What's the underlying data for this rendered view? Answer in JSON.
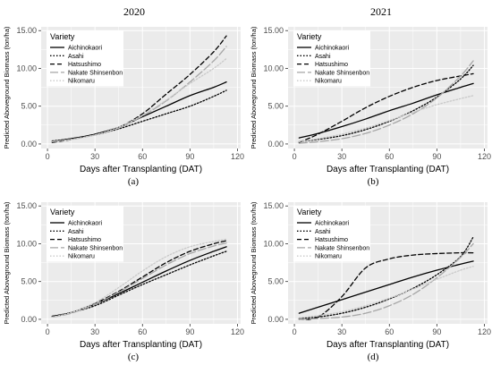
{
  "figure": {
    "year_left": "2020",
    "year_right": "2021",
    "captions": [
      "(a)",
      "(b)",
      "(c)",
      "(d)"
    ]
  },
  "colors": {
    "panel_bg": "#ebebeb",
    "grid": "#ffffff",
    "legend_bg": "#ffffff"
  },
  "chart_data": [
    {
      "type": "line",
      "year": "2020",
      "xlabel": "Days after Transplanting (DAT)",
      "ylabel": "Predicted Aboveground Biomass (ton/ha)",
      "xlim": [
        -4,
        122
      ],
      "ylim": [
        -0.6,
        15.5
      ],
      "xticks": [
        0,
        30,
        60,
        90,
        120
      ],
      "yticks": [
        0,
        5,
        10,
        15
      ],
      "ytick_labels": [
        "0.00",
        "5.00",
        "10.00",
        "15.00"
      ],
      "legend_title": "Variety",
      "legend_position": "top-left",
      "series": [
        {
          "name": "Aichinokaori",
          "color": "#000000",
          "dash": "solid",
          "x": [
            3,
            15,
            30,
            45,
            60,
            75,
            90,
            105,
            113
          ],
          "y": [
            0.3,
            0.7,
            1.3,
            2.2,
            3.6,
            5.0,
            6.4,
            7.5,
            8.2
          ]
        },
        {
          "name": "Asahi",
          "color": "#000000",
          "dash": "dotted",
          "x": [
            3,
            15,
            30,
            45,
            60,
            75,
            90,
            105,
            113
          ],
          "y": [
            0.4,
            0.7,
            1.2,
            2.0,
            3.0,
            4.0,
            5.0,
            6.3,
            7.1
          ]
        },
        {
          "name": "Hatsushimo",
          "color": "#000000",
          "dash": "dashed",
          "x": [
            3,
            15,
            30,
            45,
            60,
            75,
            90,
            105,
            113
          ],
          "y": [
            0.2,
            0.6,
            1.3,
            2.2,
            4.0,
            6.6,
            9.2,
            12.2,
            14.3
          ]
        },
        {
          "name": "Nakate Shinsenbon",
          "color": "#a6a6a6",
          "dash": "longdash",
          "x": [
            3,
            15,
            30,
            45,
            60,
            75,
            90,
            105,
            113
          ],
          "y": [
            0.3,
            0.6,
            1.2,
            2.1,
            3.7,
            5.7,
            8.2,
            11.0,
            12.9
          ]
        },
        {
          "name": "Nikomaru",
          "color": "#c9c9c9",
          "dash": "dotted",
          "x": [
            3,
            15,
            30,
            45,
            60,
            75,
            90,
            105,
            113
          ],
          "y": [
            0.3,
            0.6,
            1.2,
            2.2,
            3.8,
            5.8,
            8.0,
            10.0,
            11.3
          ]
        }
      ]
    },
    {
      "type": "line",
      "year": "2021",
      "xlabel": "Days after Transplanting (DAT)",
      "ylabel": "Predicted Aboveground Biomass (ton/ha)",
      "xlim": [
        -4,
        122
      ],
      "ylim": [
        -0.6,
        15.5
      ],
      "xticks": [
        0,
        30,
        60,
        90,
        120
      ],
      "yticks": [
        0,
        5,
        10,
        15
      ],
      "ytick_labels": [
        "0.00",
        "5.00",
        "10.00",
        "15.00"
      ],
      "legend_title": "Variety",
      "legend_position": "top-left",
      "series": [
        {
          "name": "Aichinokaori",
          "color": "#000000",
          "dash": "solid",
          "x": [
            3,
            15,
            30,
            45,
            60,
            75,
            90,
            105,
            113
          ],
          "y": [
            0.8,
            1.4,
            2.3,
            3.3,
            4.4,
            5.4,
            6.5,
            7.5,
            8.0
          ]
        },
        {
          "name": "Asahi",
          "color": "#000000",
          "dash": "dotted",
          "x": [
            3,
            15,
            30,
            45,
            60,
            75,
            90,
            105,
            113
          ],
          "y": [
            0.3,
            0.6,
            1.1,
            1.9,
            3.0,
            4.4,
            6.2,
            8.6,
            10.4
          ]
        },
        {
          "name": "Hatsushimo",
          "color": "#000000",
          "dash": "dashed",
          "x": [
            3,
            15,
            30,
            45,
            60,
            75,
            90,
            105,
            113
          ],
          "y": [
            0.2,
            1.3,
            3.0,
            4.8,
            6.3,
            7.5,
            8.4,
            9.0,
            9.3
          ]
        },
        {
          "name": "Nakate Shinsenbon",
          "color": "#a6a6a6",
          "dash": "longdash",
          "x": [
            3,
            15,
            30,
            45,
            60,
            75,
            90,
            105,
            113
          ],
          "y": [
            0.1,
            0.3,
            0.7,
            1.4,
            2.5,
            4.0,
            6.1,
            9.0,
            11.0
          ]
        },
        {
          "name": "Nikomaru",
          "color": "#c9c9c9",
          "dash": "dotted",
          "x": [
            3,
            15,
            30,
            45,
            60,
            75,
            90,
            105,
            113
          ],
          "y": [
            0.3,
            0.7,
            1.3,
            2.1,
            3.1,
            4.2,
            5.2,
            6.0,
            6.4
          ]
        }
      ]
    },
    {
      "type": "line",
      "year": "2020",
      "xlabel": "Days after Transplanting (DAT)",
      "ylabel": "Predicted Aboveground Biomass (ton/ha)",
      "xlim": [
        -4,
        122
      ],
      "ylim": [
        -0.6,
        15.5
      ],
      "xticks": [
        0,
        30,
        60,
        90,
        120
      ],
      "yticks": [
        0,
        5,
        10,
        15
      ],
      "ytick_labels": [
        "0.00",
        "5.00",
        "10.00",
        "15.00"
      ],
      "legend_title": "Variety",
      "legend_position": "top-left",
      "series": [
        {
          "name": "Aichinokaori",
          "color": "#000000",
          "dash": "solid",
          "x": [
            3,
            15,
            30,
            45,
            60,
            75,
            90,
            105,
            113
          ],
          "y": [
            0.4,
            0.9,
            2.0,
            3.4,
            4.9,
            6.4,
            7.8,
            9.0,
            9.6
          ]
        },
        {
          "name": "Asahi",
          "color": "#000000",
          "dash": "dotted",
          "x": [
            3,
            15,
            30,
            45,
            60,
            75,
            90,
            105,
            113
          ],
          "y": [
            0.4,
            0.9,
            1.8,
            3.2,
            4.6,
            5.9,
            7.2,
            8.4,
            9.0
          ]
        },
        {
          "name": "Hatsushimo",
          "color": "#000000",
          "dash": "dashed",
          "x": [
            3,
            15,
            30,
            45,
            60,
            75,
            90,
            105,
            113
          ],
          "y": [
            0.3,
            0.9,
            2.1,
            3.7,
            5.6,
            7.5,
            9.0,
            10.0,
            10.4
          ]
        },
        {
          "name": "Nakate Shinsenbon",
          "color": "#a6a6a6",
          "dash": "longdash",
          "x": [
            3,
            15,
            30,
            45,
            60,
            75,
            90,
            105,
            113
          ],
          "y": [
            0.3,
            0.8,
            2.0,
            3.6,
            5.4,
            7.2,
            8.7,
            9.7,
            10.1
          ]
        },
        {
          "name": "Nikomaru",
          "color": "#c9c9c9",
          "dash": "dotted",
          "x": [
            3,
            15,
            30,
            45,
            60,
            75,
            90,
            105,
            113
          ],
          "y": [
            0.3,
            0.9,
            2.2,
            4.2,
            6.4,
            8.3,
            9.6,
            10.3,
            10.6
          ]
        }
      ]
    },
    {
      "type": "line",
      "year": "2021",
      "xlabel": "Days after Transplanting (DAT)",
      "ylabel": "Predicted Aboveground Biomass (ton/ha)",
      "xlim": [
        -4,
        122
      ],
      "ylim": [
        -0.6,
        15.5
      ],
      "xticks": [
        0,
        30,
        60,
        90,
        120
      ],
      "yticks": [
        0,
        5,
        10,
        15
      ],
      "ytick_labels": [
        "0.00",
        "5.00",
        "10.00",
        "15.00"
      ],
      "legend_title": "Variety",
      "legend_position": "top-left",
      "series": [
        {
          "name": "Aichinokaori",
          "color": "#000000",
          "dash": "solid",
          "x": [
            3,
            15,
            30,
            45,
            60,
            75,
            90,
            105,
            113
          ],
          "y": [
            0.8,
            1.6,
            2.6,
            3.6,
            4.6,
            5.6,
            6.5,
            7.3,
            7.7
          ]
        },
        {
          "name": "Asahi",
          "color": "#000000",
          "dash": "dotted",
          "x": [
            3,
            15,
            30,
            45,
            60,
            75,
            90,
            105,
            113
          ],
          "y": [
            0.1,
            0.3,
            0.8,
            1.6,
            2.7,
            4.1,
            5.9,
            8.3,
            10.9
          ]
        },
        {
          "name": "Hatsushimo",
          "color": "#000000",
          "dash": "dashed",
          "x": [
            3,
            15,
            30,
            45,
            60,
            75,
            90,
            105,
            113
          ],
          "y": [
            0.0,
            0.3,
            3.0,
            6.8,
            8.0,
            8.5,
            8.7,
            8.8,
            8.8
          ]
        },
        {
          "name": "Nakate Shinsenbon",
          "color": "#a6a6a6",
          "dash": "longdash",
          "x": [
            3,
            15,
            30,
            45,
            60,
            75,
            90,
            105,
            113
          ],
          "y": [
            0.0,
            0.1,
            0.3,
            0.8,
            1.8,
            3.3,
            5.5,
            8.2,
            10.0
          ]
        },
        {
          "name": "Nikomaru",
          "color": "#c9c9c9",
          "dash": "dotted",
          "x": [
            3,
            15,
            30,
            45,
            60,
            75,
            90,
            105,
            113
          ],
          "y": [
            0.2,
            0.5,
            1.0,
            1.8,
            2.8,
            4.0,
            5.3,
            6.5,
            7.0
          ]
        }
      ]
    }
  ]
}
